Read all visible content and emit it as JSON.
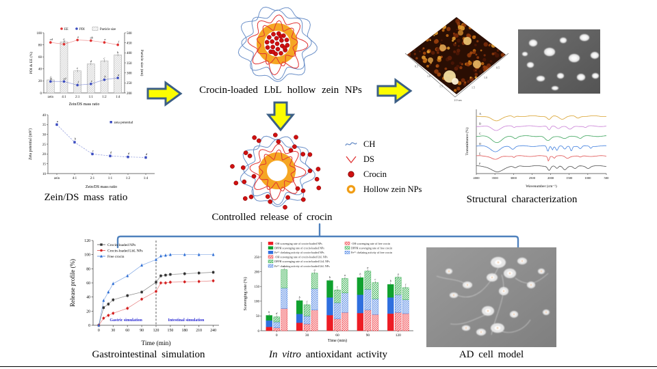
{
  "captions": {
    "zein_ds": "Zein/DS mass ratio",
    "center_title": "Crocin-loaded LbL hollow zein NPs",
    "controlled_release": "Controlled release of crocin",
    "structural": "Structural characterization",
    "gastro": "Gastrointestinal simulation",
    "invitro_italic": "In vitro",
    "invitro_rest": " antioxidant activity",
    "ad_cell": "AD cell model"
  },
  "colors": {
    "arrow_fill": "#fdfd00",
    "arrow_stroke": "#3c5f85",
    "connector": "#4f81bd",
    "ee_red": "#e03131",
    "pdi_blue": "#3b4cc0",
    "orange_ring": "#f5a623",
    "crocin_dot": "#d01010",
    "ch_blue": "#6a8fc8",
    "ds_red": "#e03131"
  },
  "np_legend": {
    "items": [
      {
        "label": "CH",
        "icon": "squiggle-line",
        "color": "#6a8fc8"
      },
      {
        "label": "DS",
        "icon": "v-line",
        "color": "#e03131"
      },
      {
        "label": "Crocin",
        "icon": "red-dot",
        "color": "#d01010"
      },
      {
        "label": "Hollow zein NPs",
        "icon": "orange-ring",
        "color": "#f5a623"
      }
    ]
  },
  "afm": {
    "ticks_left": [
      "0.5",
      "1.0",
      "1.5"
    ],
    "ticks_right": [
      "1.5",
      "1.0",
      "0.5"
    ],
    "corner_label": "2.0 um"
  },
  "chart_data": [
    {
      "id": "ee-pdi-size",
      "type": "bar",
      "categories": [
        "zein",
        "4:1",
        "2:1",
        "1:1",
        "1:2",
        "1:4"
      ],
      "xlabel": "Zein/DS mass ratio",
      "ylabel_left": "PDI & EE (%)",
      "ylim_left": [
        0,
        100
      ],
      "yticks_left": [
        0,
        20,
        40,
        60,
        80,
        100
      ],
      "ylabel_right": "Particle size (nm)",
      "ylim_right": [
        200,
        500
      ],
      "yticks_right": [
        200,
        250,
        300,
        350,
        400,
        450,
        500
      ],
      "bar_series": {
        "name": "Particle size",
        "axis": "right",
        "values": [
          265,
          455,
          310,
          345,
          360,
          390
        ],
        "letters": [
          "f",
          "a",
          "e",
          "d",
          "c",
          "b"
        ]
      },
      "line_series": [
        {
          "name": "EE",
          "color": "#e03131",
          "marker": "circle",
          "axis": "left",
          "values": [
            84,
            81,
            88,
            87,
            84,
            80
          ],
          "letters": [
            "cd",
            "e",
            "a",
            "ab",
            "a",
            "f"
          ]
        },
        {
          "name": "PDI",
          "color": "#3b4cc0",
          "marker": "circle",
          "axis": "left",
          "values": [
            19,
            19,
            13,
            15,
            22,
            25
          ],
          "letters": [
            "d",
            "cd",
            "f",
            "e",
            "b",
            "a"
          ]
        }
      ]
    },
    {
      "id": "zeta",
      "type": "line",
      "categories": [
        "zein",
        "4:1",
        "2:1",
        "1:1",
        "1:2",
        "1:4"
      ],
      "xlabel": "Zein/DS mass ratio",
      "ylabel": "Zeta potential (mV)",
      "ylim": [
        10,
        40
      ],
      "yticks": [
        10,
        15,
        20,
        25,
        30,
        35,
        40
      ],
      "series": [
        {
          "name": "zeta potential",
          "color": "#3b4cc0",
          "values": [
            35,
            26,
            20,
            19,
            18.5,
            18.2
          ],
          "letters": [
            "a",
            "b",
            "c",
            "d",
            "d",
            "d"
          ]
        }
      ]
    },
    {
      "id": "ftir",
      "type": "line",
      "xlabel": "Wavenumber (cm⁻¹)",
      "ylabel": "Transmittance (%)",
      "xticks": [
        4000,
        3500,
        3000,
        2500,
        2000,
        1500,
        1000,
        500
      ],
      "x_reversed": true,
      "series": [
        {
          "name": "A",
          "color": "#d8a02a"
        },
        {
          "name": "B",
          "color": "#c97fd6"
        },
        {
          "name": "C",
          "color": "#3aa35a"
        },
        {
          "name": "D",
          "color": "#3f7ede"
        },
        {
          "name": "E",
          "color": "#e05050"
        },
        {
          "name": "F",
          "color": "#4d4d4d"
        }
      ],
      "note": "six offset FTIR spectra"
    },
    {
      "id": "release",
      "type": "line",
      "xlabel": "Time (min)",
      "ylabel": "Release profile (%)",
      "ylim": [
        0,
        120
      ],
      "yticks": [
        0,
        20,
        40,
        60,
        80,
        100,
        120
      ],
      "xticks": [
        0,
        30,
        60,
        90,
        120,
        150,
        180,
        210,
        240
      ],
      "x": [
        0,
        10,
        20,
        30,
        60,
        90,
        120,
        130,
        140,
        150,
        180,
        210,
        240
      ],
      "vline": 120,
      "series": [
        {
          "name": "Crocin-loaded NPs",
          "color": "#333333",
          "marker": "square",
          "values": [
            0,
            25,
            30,
            36,
            42,
            47,
            61,
            70,
            71,
            72,
            73,
            74,
            75
          ]
        },
        {
          "name": "Crocin-loaded LbL NPs",
          "color": "#d42020",
          "marker": "circle",
          "values": [
            0,
            10,
            14,
            17,
            24,
            37,
            48,
            60,
            60,
            61,
            61.5,
            62,
            63
          ]
        },
        {
          "name": "Free crocin",
          "color": "#2b6cd4",
          "marker": "triangle",
          "values": [
            0,
            35,
            47,
            59,
            70,
            85,
            93,
            98,
            99,
            100,
            100,
            100,
            100
          ]
        }
      ],
      "annotations": [
        {
          "text": "Gastric simulation",
          "x": 57,
          "color": "#2a2ad4"
        },
        {
          "text": "Intestinal simulation",
          "x": 183,
          "color": "#2a2ad4"
        }
      ]
    },
    {
      "id": "antioxidant",
      "type": "bar",
      "xlabel": "Time (min)",
      "ylabel": "Scavenging rate (%)",
      "ylim": [
        0,
        250
      ],
      "yticks": [
        0,
        50,
        100,
        150,
        200,
        250
      ],
      "categories": [
        0,
        30,
        60,
        90,
        120
      ],
      "groups": [
        "crocin-loaded NPs",
        "crocin-loaded LbL NPs",
        "free crocin"
      ],
      "segment_order": [
        "OH",
        "Fe",
        "DPPH"
      ],
      "segment_colors": {
        "OH": "#ed1c24",
        "Fe": "#2f6fde",
        "DPPH": "#0fa12e"
      },
      "legend": [
        {
          "label": "·OH scavenging rate of crocin-loaded NPs",
          "seg": "OH",
          "variant": 0
        },
        {
          "label": "DPPH scavenging rate of crocin-loaded NPs",
          "seg": "DPPH",
          "variant": 0
        },
        {
          "label": "Fe²⁺ chelating activity of crocin-loaded NPs",
          "seg": "Fe",
          "variant": 0
        },
        {
          "label": "·OH scavenging rate of crocin-loaded LbL NPs",
          "seg": "OH",
          "variant": 1
        },
        {
          "label": "DPPH scavenging rate of crocin-loaded LbL NPs",
          "seg": "DPPH",
          "variant": 1
        },
        {
          "label": "Fe²⁺ chelating activity of crocin-loaded LbL NPs",
          "seg": "Fe",
          "variant": 1
        },
        {
          "label": "·OH scavenging rate of free crocin",
          "seg": "OH",
          "variant": 2
        },
        {
          "label": "DPPH scavenging rate of free crocin",
          "seg": "DPPH",
          "variant": 2
        },
        {
          "label": "Fe²⁺ chelating activity of free crocin",
          "seg": "Fe",
          "variant": 2
        }
      ],
      "values": {
        "crocin_loaded_NPs": {
          "OH": [
            13,
            27,
            53,
            60,
            58
          ],
          "Fe": [
            22,
            30,
            60,
            62,
            55
          ],
          "DPPH": [
            17,
            45,
            57,
            58,
            44
          ]
        },
        "crocin_loaded_LbL_NPs": {
          "OH": [
            10,
            23,
            40,
            70,
            62
          ],
          "Fe": [
            20,
            27,
            55,
            70,
            60
          ],
          "DPPH": [
            17,
            38,
            43,
            62,
            59
          ]
        },
        "free_crocin": {
          "OH": [
            75,
            70,
            62,
            55,
            58
          ],
          "Fe": [
            70,
            73,
            66,
            53,
            47
          ],
          "DPPH": [
            62,
            52,
            49,
            55,
            41
          ]
        }
      },
      "letters": [
        [
          "b",
          "d",
          "a"
        ],
        [
          "b",
          "c",
          "a"
        ],
        [
          "b",
          "c",
          "a"
        ],
        [
          "b",
          "a",
          "c"
        ],
        [
          "b",
          "a",
          "c"
        ]
      ]
    }
  ]
}
